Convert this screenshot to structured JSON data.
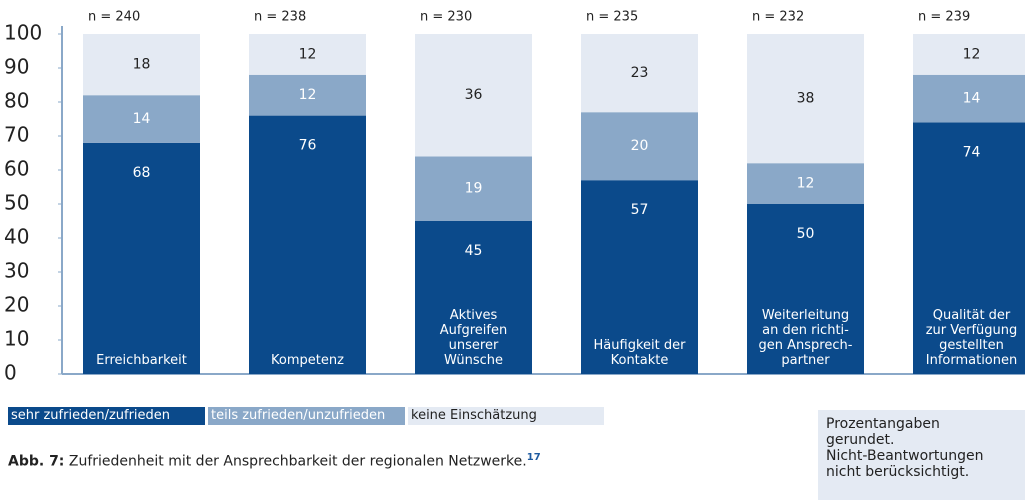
{
  "chart_data": {
    "type": "stacked_bar",
    "categories": [
      "Erreichbarkeit",
      "Kompetenz",
      "Aktives\nAufgreifen\nunserer\nWünsche",
      "Häufigkeit der\nKontakte",
      "Weiterleitung\nan den richti-\ngen Ansprech-\npartner",
      "Qualität der\nzur Verfügung\ngestellten\nInformationen"
    ],
    "n_labels": [
      "n = 240",
      "n = 238",
      "n = 230",
      "n = 235",
      "n = 232",
      "n = 239"
    ],
    "series": [
      {
        "name": "sehr zufrieden/zufrieden",
        "color": "#0b4a8b",
        "values": [
          68,
          76,
          45,
          57,
          50,
          74
        ]
      },
      {
        "name": "teils zufrieden/unzufrieden",
        "color": "#8aa8c8",
        "values": [
          14,
          12,
          19,
          20,
          12,
          14
        ]
      },
      {
        "name": "keine Einschätzung",
        "color": "#e4eaf3",
        "values": [
          18,
          12,
          36,
          23,
          38,
          12
        ]
      }
    ],
    "ylim": [
      0,
      100
    ],
    "yticks": [
      0,
      10,
      20,
      30,
      40,
      50,
      60,
      70,
      80,
      90,
      100
    ]
  },
  "caption": {
    "label": "Abb. 7:",
    "text": "Zufriedenheit mit der Ansprechbarkeit der regionalen Netzwerke.",
    "footnote": "17"
  },
  "note": "Prozentangaben\ngerundet.\nNicht-Beantwortungen\nnicht berücksichtigt."
}
